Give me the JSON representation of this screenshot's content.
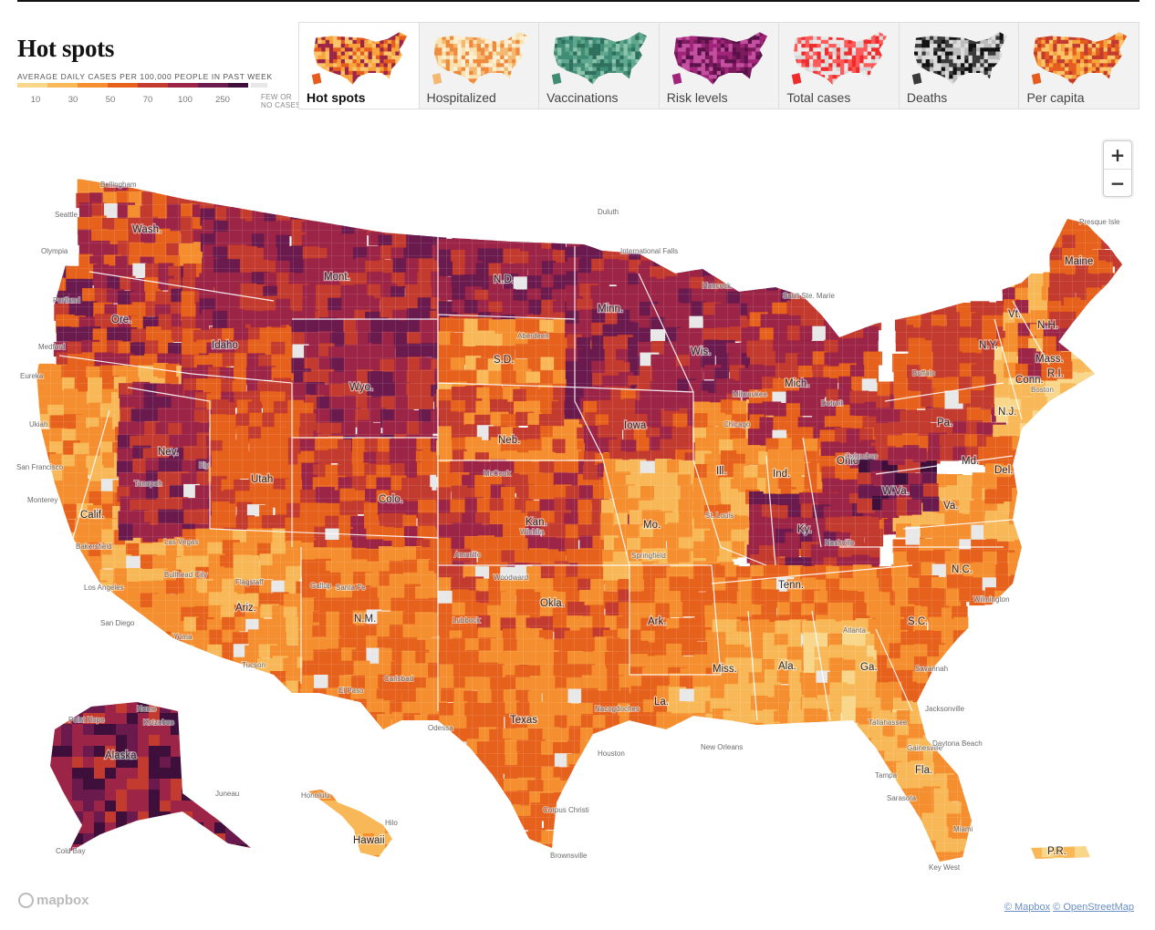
{
  "header": {
    "title": "Hot spots",
    "legend_caption": "AVERAGE DAILY CASES PER 100,000 PEOPLE IN PAST WEEK",
    "legend_colors": [
      "#f8d68a",
      "#f8b857",
      "#f58e2e",
      "#e6611c",
      "#c33a2f",
      "#9c2447",
      "#6b1a4e",
      "#3d0f3a"
    ],
    "legend_ticks": [
      "10",
      "30",
      "50",
      "70",
      "100",
      "250"
    ],
    "legend_few_line1": "FEW OR",
    "legend_few_line2": "NO CASES",
    "legend_few_color": "#e8e8e8"
  },
  "tabs": [
    {
      "label": "Hot spots",
      "active": true,
      "palette": [
        "#f7a33a",
        "#e55c1e",
        "#9c2447",
        "#fcc46a"
      ]
    },
    {
      "label": "Hospitalized",
      "active": false,
      "palette": [
        "#f9e2b0",
        "#f5b871",
        "#ef8a3c",
        "#fcefd4"
      ]
    },
    {
      "label": "Vaccinations",
      "active": false,
      "palette": [
        "#5fa88e",
        "#3f8d75",
        "#8cc3ad",
        "#2f6f5d"
      ]
    },
    {
      "label": "Risk levels",
      "active": false,
      "palette": [
        "#7a1a5c",
        "#a0247a",
        "#5a1048",
        "#c44fa0"
      ]
    },
    {
      "label": "Total cases",
      "active": false,
      "palette": [
        "#e8e8e8",
        "#f02b2b",
        "#d8d8d8",
        "#ff5a5a"
      ]
    },
    {
      "label": "Deaths",
      "active": false,
      "palette": [
        "#dcdcdc",
        "#3a3a3a",
        "#bcbcbc",
        "#111111"
      ]
    },
    {
      "label": "Per capita",
      "active": false,
      "palette": [
        "#f7a33a",
        "#e55c1e",
        "#c33a2f",
        "#fcc46a"
      ]
    }
  ],
  "map": {
    "states": [
      {
        "name": "Wash.",
        "color": "#e6611c"
      },
      {
        "name": "Ore.",
        "color": "#c33a2f"
      },
      {
        "name": "Calif.",
        "color": "#f8b857"
      },
      {
        "name": "Nev.",
        "color": "#c33a2f"
      },
      {
        "name": "Idaho",
        "color": "#e6611c"
      },
      {
        "name": "Mont.",
        "color": "#9c2447"
      },
      {
        "name": "Wyo.",
        "color": "#9c2447"
      },
      {
        "name": "Utah",
        "color": "#e6611c"
      },
      {
        "name": "Colo.",
        "color": "#e6611c"
      },
      {
        "name": "Ariz.",
        "color": "#f58e2e"
      },
      {
        "name": "N.M.",
        "color": "#f58e2e"
      },
      {
        "name": "N.D.",
        "color": "#9c2447"
      },
      {
        "name": "S.D.",
        "color": "#f58e2e"
      },
      {
        "name": "Neb.",
        "color": "#f58e2e"
      },
      {
        "name": "Kan.",
        "color": "#e6611c"
      },
      {
        "name": "Okla.",
        "color": "#f58e2e"
      },
      {
        "name": "Texas",
        "color": "#f58e2e"
      },
      {
        "name": "Minn.",
        "color": "#c33a2f"
      },
      {
        "name": "Iowa",
        "color": "#c33a2f"
      },
      {
        "name": "Mo.",
        "color": "#f8b857"
      },
      {
        "name": "Ark.",
        "color": "#f58e2e"
      },
      {
        "name": "La.",
        "color": "#f8b857"
      },
      {
        "name": "Wis.",
        "color": "#c33a2f"
      },
      {
        "name": "Ill.",
        "color": "#f8b857"
      },
      {
        "name": "Mich.",
        "color": "#c33a2f"
      },
      {
        "name": "Ind.",
        "color": "#f58e2e"
      },
      {
        "name": "Ohio",
        "color": "#e6611c"
      },
      {
        "name": "Ky.",
        "color": "#c33a2f"
      },
      {
        "name": "Tenn.",
        "color": "#f58e2e"
      },
      {
        "name": "Miss.",
        "color": "#f8b857"
      },
      {
        "name": "Ala.",
        "color": "#f8b857"
      },
      {
        "name": "Ga.",
        "color": "#f8d68a"
      },
      {
        "name": "Fla.",
        "color": "#f8b857"
      },
      {
        "name": "S.C.",
        "color": "#f58e2e"
      },
      {
        "name": "N.C.",
        "color": "#f58e2e"
      },
      {
        "name": "Va.",
        "color": "#f8b857"
      },
      {
        "name": "W.Va.",
        "color": "#9c2447"
      },
      {
        "name": "Pa.",
        "color": "#e6611c"
      },
      {
        "name": "N.Y.",
        "color": "#e6611c"
      },
      {
        "name": "Md.",
        "color": "#f8b857"
      },
      {
        "name": "Del.",
        "color": "#f58e2e"
      },
      {
        "name": "N.J.",
        "color": "#f8b857"
      },
      {
        "name": "Conn.",
        "color": "#f8d68a"
      },
      {
        "name": "R.I.",
        "color": "#f8d68a"
      },
      {
        "name": "Mass.",
        "color": "#f8d68a"
      },
      {
        "name": "Vt.",
        "color": "#f8d68a"
      },
      {
        "name": "N.H.",
        "color": "#f58e2e"
      },
      {
        "name": "Maine",
        "color": "#e6611c"
      },
      {
        "name": "Alaska",
        "color": "#9c2447"
      },
      {
        "name": "Hawaii",
        "color": "#f8b857"
      },
      {
        "name": "P.R.",
        "color": "#f8d68a"
      }
    ],
    "cities": [
      "Bellingham",
      "Seattle",
      "Olympia",
      "Portland",
      "Medford",
      "Eureka",
      "Ukiah",
      "San Francisco",
      "Monterey",
      "Bakersfield",
      "Los Angeles",
      "San Diego",
      "Bullhead City",
      "Las Vegas",
      "Tonopah",
      "Ely",
      "Flagstaff",
      "Yuma",
      "Tucson",
      "Gallup",
      "Santa Fe",
      "Carlsbad",
      "El Paso",
      "Lubbock",
      "Odessa",
      "Amarillo",
      "Woodward",
      "Wichita",
      "McCook",
      "Aberdeen",
      "Duluth",
      "International Falls",
      "Hancock",
      "Sault Ste. Marie",
      "Milwaukee",
      "Chicago",
      "Detroit",
      "Boston",
      "Presque Isle",
      "Buffalo",
      "Springfield",
      "St. Louis",
      "Nashville",
      "Atlanta",
      "Savannah",
      "Jacksonville",
      "Tallahassee",
      "Gainesville",
      "Tampa",
      "Sarasota",
      "Miami",
      "Key West",
      "Daytona Beach",
      "Wilmington",
      "Houston",
      "Nacogdoches",
      "New Orleans",
      "Corpus Christi",
      "Brownsville",
      "Columbus",
      "Honolulu",
      "Hilo",
      "Point Hope",
      "Nome",
      "Cold Bay",
      "Juneau",
      "Kotzebue"
    ],
    "zoom_in": "+",
    "zoom_out": "−"
  },
  "footer": {
    "mapbox_logo": "mapbox",
    "attribution": [
      "© Mapbox",
      "© OpenStreetMap"
    ]
  }
}
